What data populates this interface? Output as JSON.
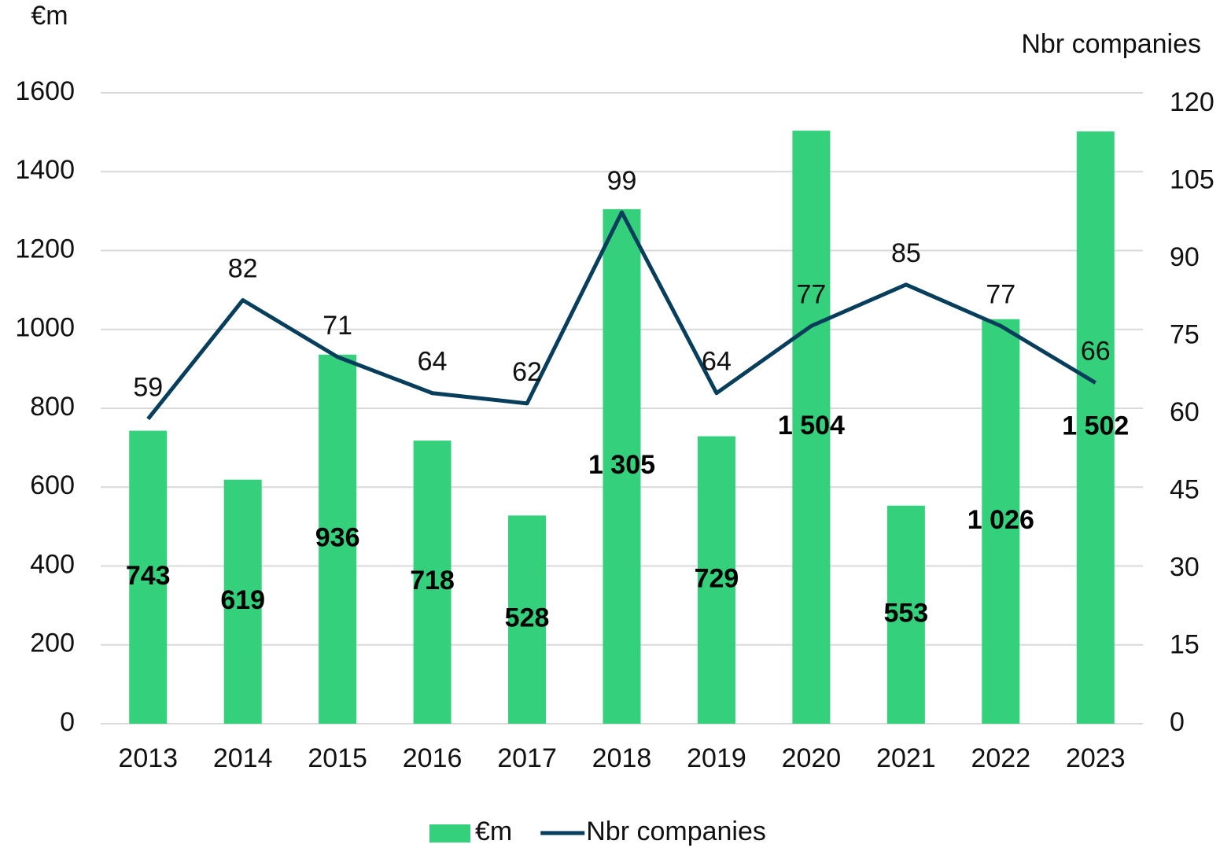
{
  "chart_data": {
    "type": "bar_line",
    "ylabel": "€m",
    "y2label": "Nbr companies",
    "categories": [
      "2013",
      "2014",
      "2015",
      "2016",
      "2017",
      "2018",
      "2019",
      "2020",
      "2021",
      "2022",
      "2023"
    ],
    "series": [
      {
        "name": "€m",
        "type": "bar",
        "color": "#34d07b",
        "values": [
          743,
          619,
          936,
          718,
          528,
          1305,
          729,
          1504,
          553,
          1026,
          1502
        ],
        "value_labels": [
          "743",
          "619",
          "936",
          "718",
          "528",
          "1 305",
          "729",
          "1 504",
          "553",
          "1 026",
          "1 502"
        ]
      },
      {
        "name": "Nbr companies",
        "type": "line",
        "axis": "y2",
        "color": "#073e5c",
        "values": [
          59,
          82,
          71,
          64,
          62,
          99,
          64,
          77,
          85,
          77,
          66
        ]
      }
    ],
    "ylim": [
      0,
      1600
    ],
    "yticks": [
      0,
      200,
      400,
      600,
      800,
      1000,
      1200,
      1400,
      1600
    ],
    "y2lim": [
      0,
      120
    ],
    "y2ticks": [
      0,
      15,
      30,
      45,
      60,
      75,
      90,
      105,
      120
    ],
    "grid": true,
    "legend": "bottom"
  }
}
